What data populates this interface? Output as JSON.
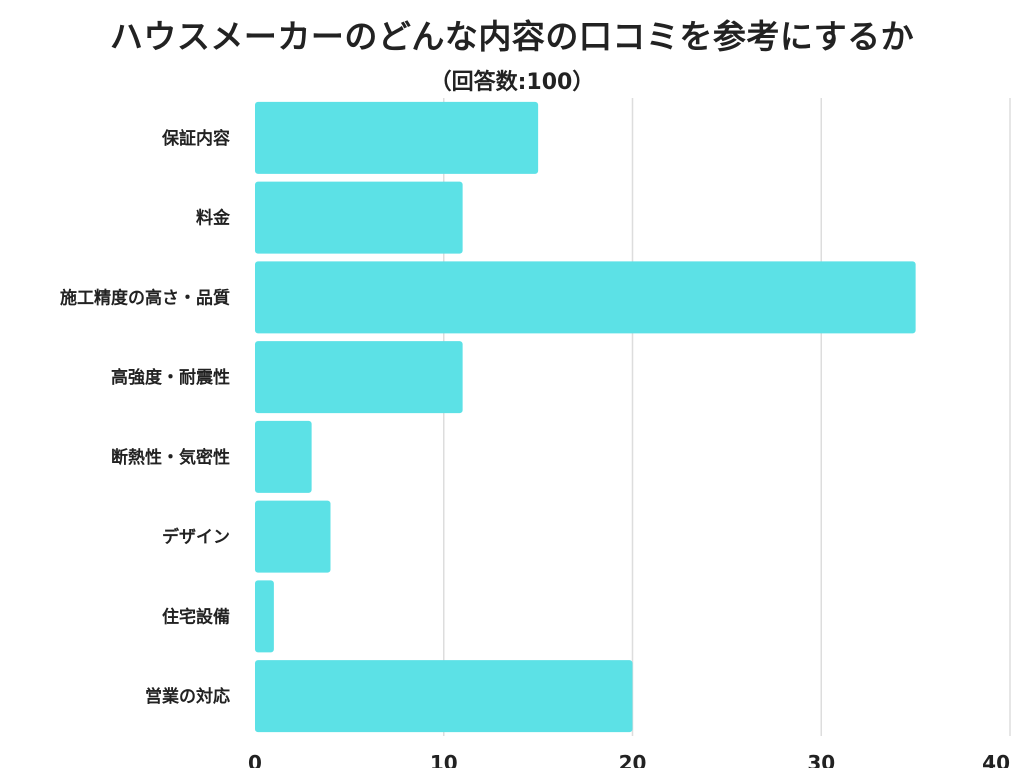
{
  "chart_data": {
    "type": "bar",
    "orientation": "horizontal",
    "title": "ハウスメーカーのどんな内容の口コミを参考にするか",
    "subtitle": "（回答数:100）",
    "categories": [
      "保証内容",
      "料金",
      "施工精度の高さ・品質",
      "高強度・耐震性",
      "断熱性・気密性",
      "デザイン",
      "住宅設備",
      "営業の対応"
    ],
    "values": [
      15,
      11,
      35,
      11,
      3,
      4,
      1,
      20
    ],
    "xlim": [
      0,
      40
    ],
    "xticks": [
      "0",
      "10",
      "20",
      "30",
      "40"
    ],
    "xtick_values": [
      0,
      10,
      20,
      30,
      40
    ],
    "grid": true,
    "legend": "none",
    "colors": {
      "bar": "#5ce1e6",
      "grid": "#dddddd",
      "text": "#222222"
    }
  }
}
